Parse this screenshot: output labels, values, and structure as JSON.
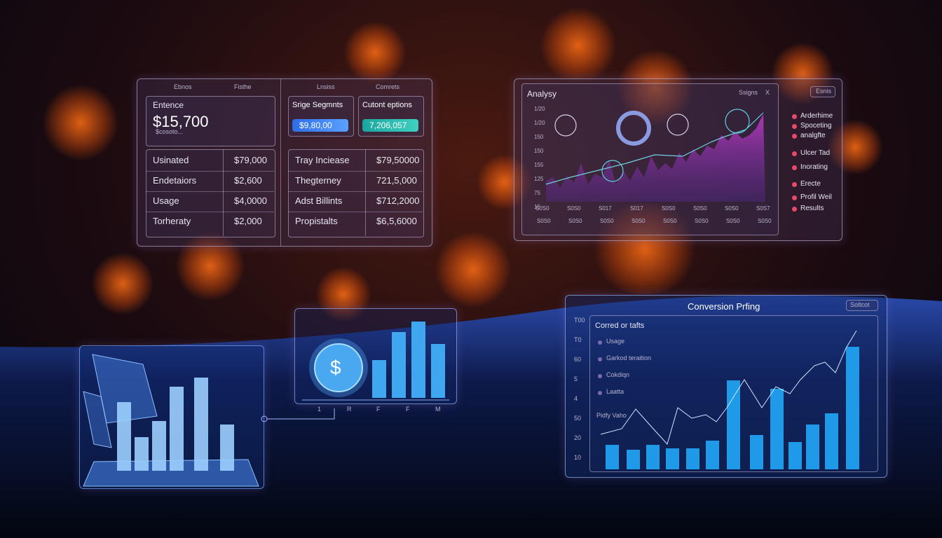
{
  "finance_panel": {
    "header": [
      "Ebnos",
      "Fisthe",
      "Lnsiss",
      "Comrets"
    ],
    "balance": {
      "title": "Entence",
      "value": "$15,700",
      "note": "$cosoto..."
    },
    "cards": [
      {
        "title": "Srige Segmnts",
        "value": "$9,80,00"
      },
      {
        "title": "Cutont eptions",
        "value": "7,206,057"
      }
    ],
    "table_left": [
      [
        "Usinated",
        "$79,000"
      ],
      [
        "Endetaiors",
        "$2,600"
      ],
      [
        "Usage",
        "$4,0000"
      ],
      [
        "Torheraty",
        "$2,000"
      ]
    ],
    "table_right": [
      [
        "Tray Inciease",
        "$79,50000"
      ],
      [
        "Thegterney",
        "721,5,000"
      ],
      [
        "Adst Billints",
        "$712,2000"
      ],
      [
        "Propistalts",
        "$6,5,6000"
      ]
    ]
  },
  "analytics_panel": {
    "title": "Analysy",
    "menu": "Ssigns",
    "close": "X",
    "button": "Esnis",
    "y_labels": [
      "1/20",
      "1/20",
      "150",
      "150",
      "155",
      "125",
      "75",
      "15"
    ],
    "x_labels_top": [
      "S0S0",
      "S0S0",
      "S017",
      "S017",
      "S0S0",
      "S0S0",
      "S0S0",
      "S0S7"
    ],
    "x_labels_bottom": [
      "S0S0",
      "S0S0",
      "S0S0",
      "S0S0",
      "S0S0",
      "S0S0",
      "S0S0",
      "S0S0"
    ],
    "legend": [
      "Arderhime",
      "Spoceting",
      "analgfte",
      "Ulcer Tad",
      "Inorating",
      "Erecte",
      "Profil Weil",
      "Results"
    ]
  },
  "coin_panel": {
    "symbol": "$",
    "x_labels": [
      "1",
      "R",
      "F",
      "F",
      "M"
    ]
  },
  "conversion_panel": {
    "title": "Conversion Prfing",
    "button": "Soltcot",
    "y_labels": [
      "T00",
      "T0",
      "60",
      "5",
      "4",
      "50",
      "20",
      "10"
    ],
    "subtitle": "Corred or tafts",
    "legend": [
      "Usage",
      "Garkod teraition",
      "Cokdiqn",
      "Laatta"
    ],
    "note": "Pidfy Vaho"
  }
}
